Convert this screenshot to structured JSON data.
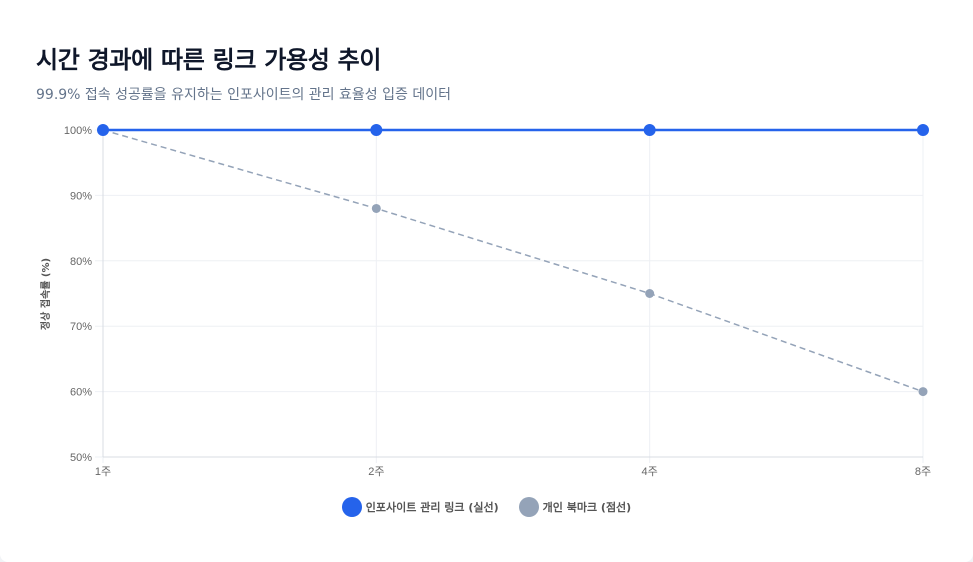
{
  "header": {
    "title": "시간 경과에 따른 링크 가용성 추이",
    "subtitle": "99.9% 접속 성공률을 유지하는 인포사이트의 관리 효율성 입증 데이터"
  },
  "colors": {
    "managed": "#2563eb",
    "personal": "#94a3b8",
    "grid": "#eef0f4",
    "axis": "#d8dce3"
  },
  "chart_data": {
    "type": "line",
    "title": "시간 경과에 따른 링크 가용성 추이",
    "subtitle": "99.9% 접속 성공률을 유지하는 인포사이트의 관리 효율성 입증 데이터",
    "categories": [
      "1주",
      "2주",
      "4주",
      "8주"
    ],
    "series": [
      {
        "name": "인포사이트 관리 링크 (실선)",
        "values": [
          100,
          100,
          100,
          100
        ],
        "color": "#2563eb",
        "style": "solid"
      },
      {
        "name": "개인 북마크 (점선)",
        "values": [
          100,
          88,
          75,
          60
        ],
        "color": "#94a3b8",
        "style": "dashed"
      }
    ],
    "xlabel": "",
    "ylabel": "정상 접속률 (%)",
    "ylim": [
      50,
      100
    ],
    "yticks": [
      "50%",
      "60%",
      "70%",
      "80%",
      "90%",
      "100%"
    ],
    "grid": true,
    "legend_position": "bottom"
  },
  "legend": {
    "items": [
      {
        "label": "인포사이트 관리 링크 (실선)"
      },
      {
        "label": "개인 북마크 (점선)"
      }
    ]
  }
}
